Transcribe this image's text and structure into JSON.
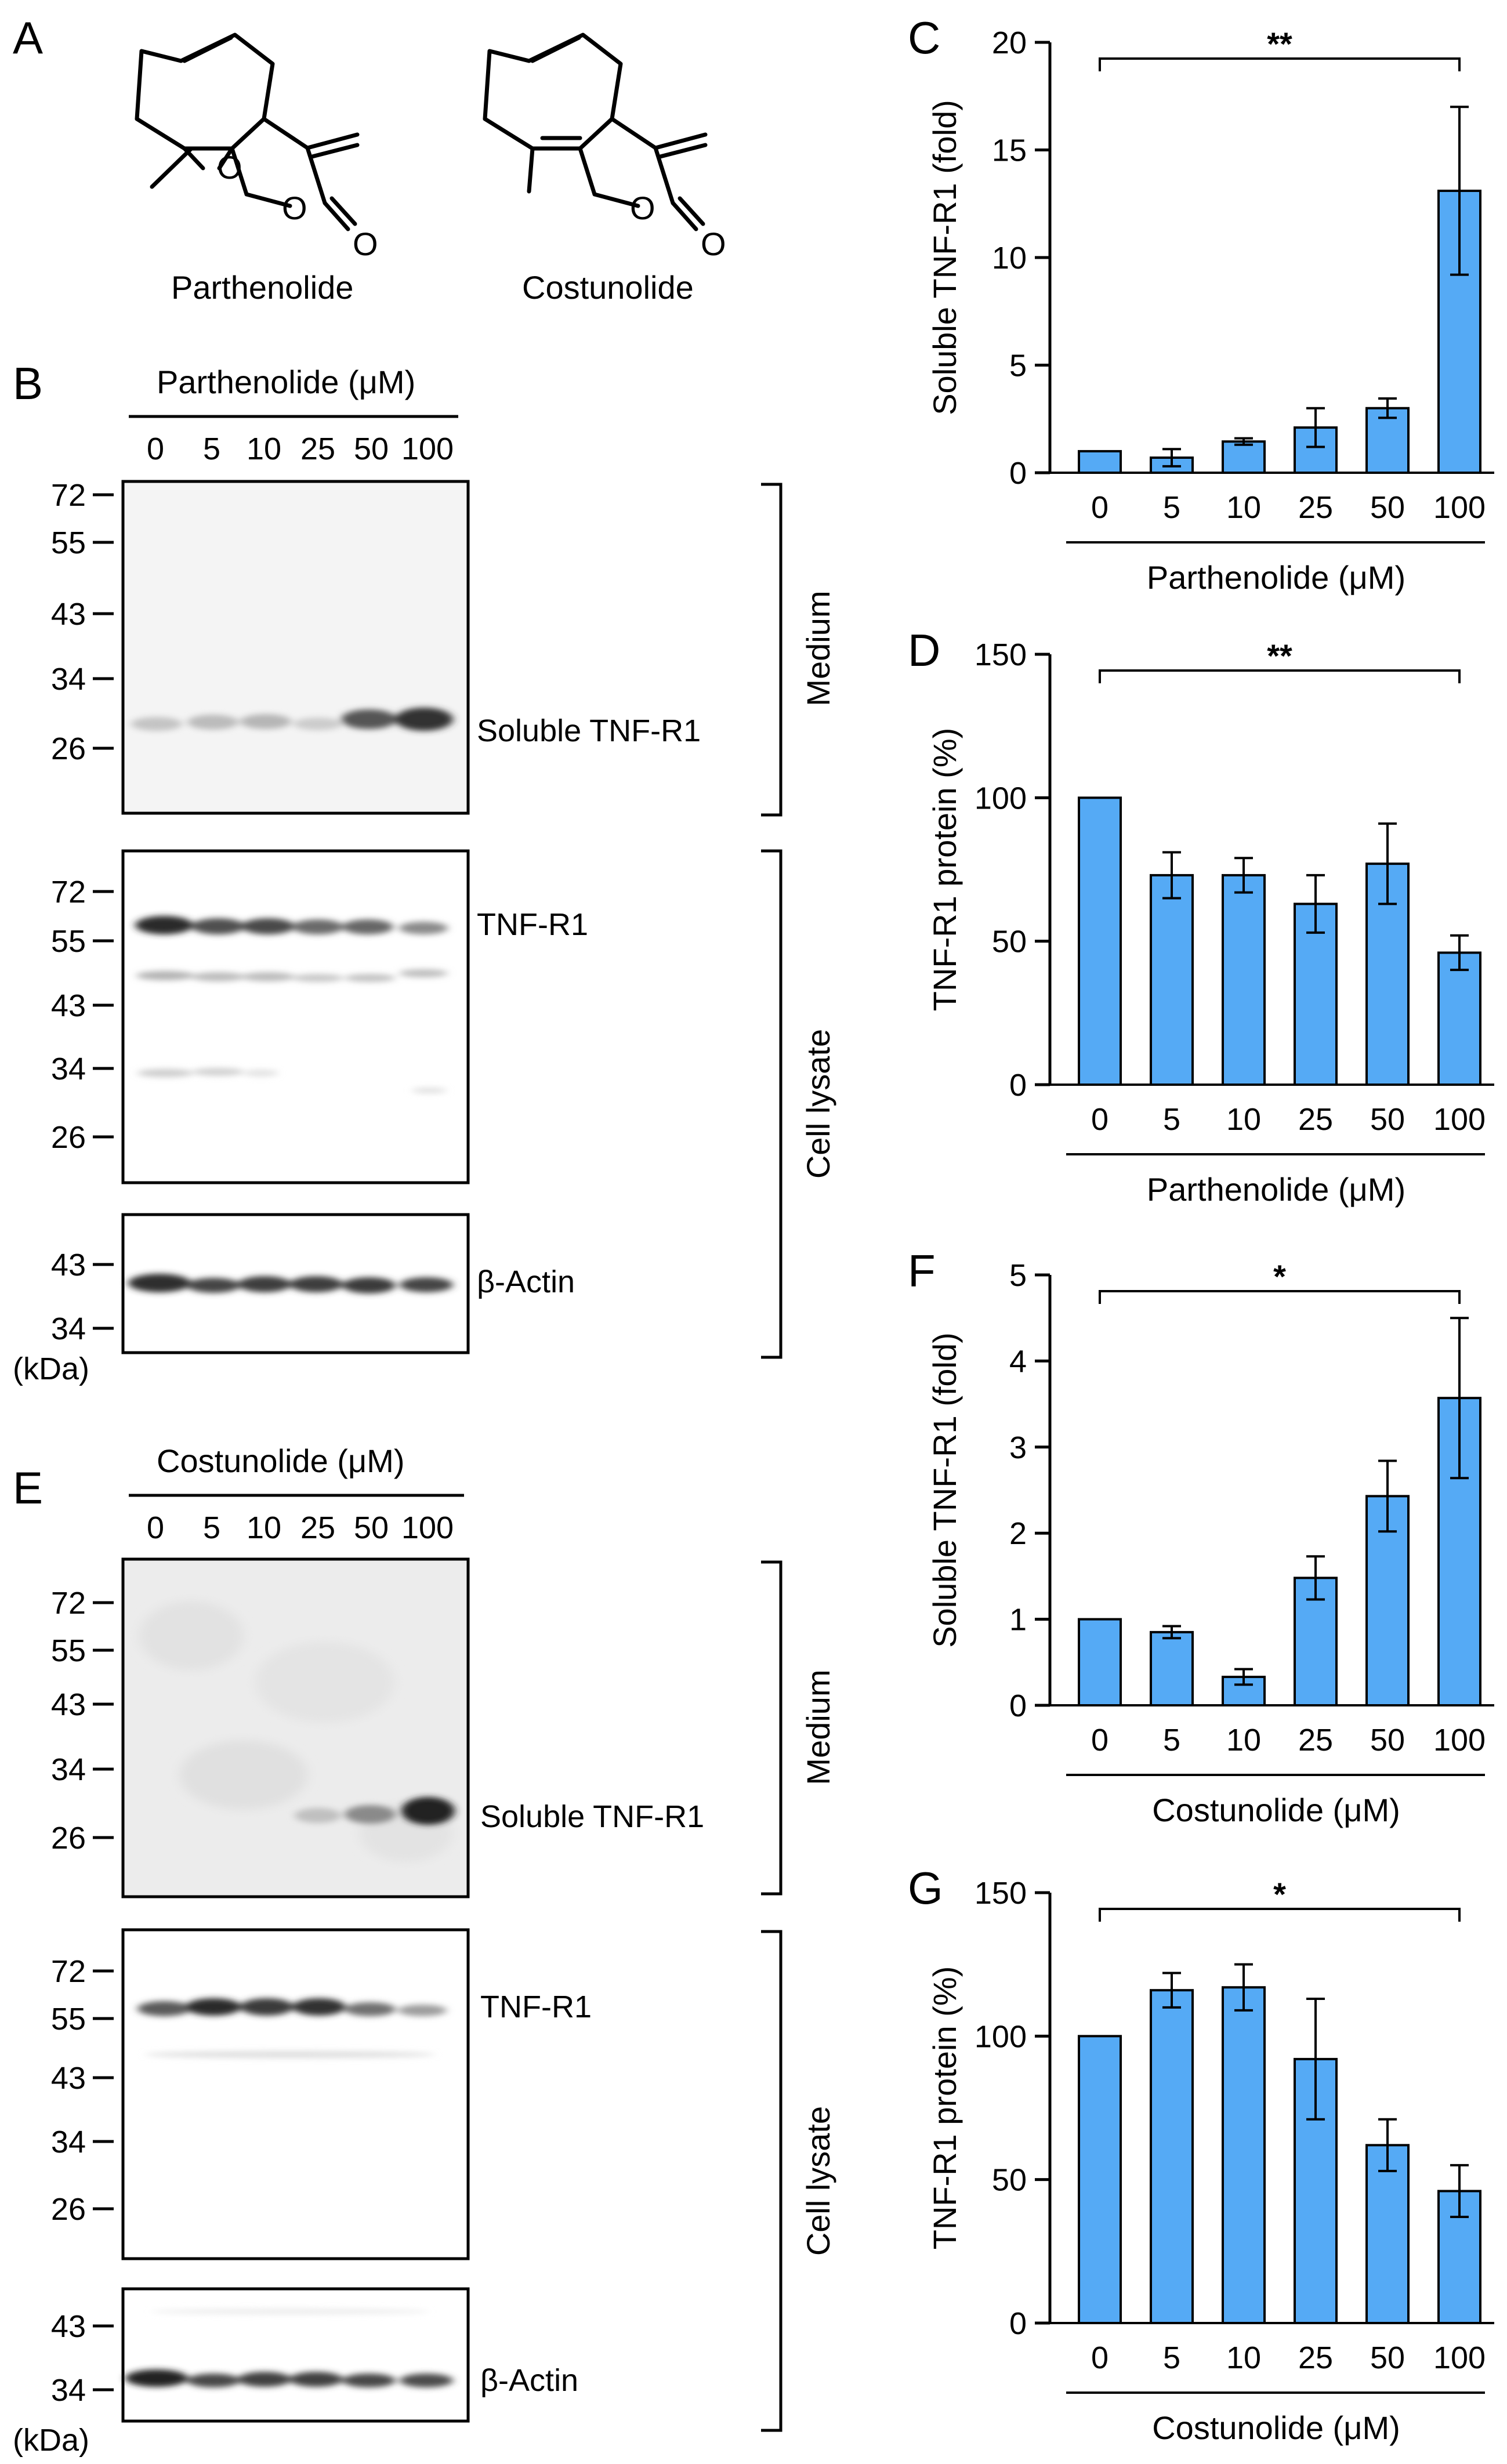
{
  "panels": {
    "A": {
      "letter": "A",
      "compounds": [
        {
          "name": "Parthenolide"
        },
        {
          "name": "Costunolide"
        }
      ],
      "atoms": {
        "epoxide_o": "O",
        "ring_o": "O",
        "carbonyl_o": "O"
      }
    },
    "B": {
      "letter": "B",
      "treatment": "Parthenolide (μM)",
      "lanes": [
        "0",
        "5",
        "10",
        "25",
        "50",
        "100"
      ],
      "blots": [
        {
          "band": "Soluble TNF-R1",
          "markers": [
            "72",
            "55",
            "43",
            "34",
            "26"
          ]
        },
        {
          "band": "TNF-R1",
          "markers": [
            "72",
            "55",
            "43",
            "34",
            "26"
          ]
        },
        {
          "band": "β-Actin",
          "markers": [
            "43",
            "34"
          ]
        }
      ],
      "brackets": [
        "Medium",
        "Cell lysate"
      ],
      "unit": "(kDa)"
    },
    "E": {
      "letter": "E",
      "treatment": "Costunolide (μM)",
      "lanes": [
        "0",
        "5",
        "10",
        "25",
        "50",
        "100"
      ],
      "blots": [
        {
          "band": "Soluble TNF-R1",
          "markers": [
            "72",
            "55",
            "43",
            "34",
            "26"
          ]
        },
        {
          "band": "TNF-R1",
          "markers": [
            "72",
            "55",
            "43",
            "34",
            "26"
          ]
        },
        {
          "band": "β-Actin",
          "markers": [
            "43",
            "34"
          ]
        }
      ],
      "brackets": [
        "Medium",
        "Cell lysate"
      ],
      "unit": "(kDa)"
    }
  },
  "chart_data": [
    {
      "letter": "C",
      "type": "bar",
      "categories": [
        "0",
        "5",
        "10",
        "25",
        "50",
        "100"
      ],
      "values": [
        1.0,
        0.7,
        1.45,
        2.1,
        3.0,
        13.1
      ],
      "errors": [
        0,
        0.4,
        0.15,
        0.9,
        0.45,
        3.9
      ],
      "ylabel": "Soluble TNF-R1 (fold)",
      "xlabel": "Parthenolide (μM)",
      "ylim": [
        0,
        20
      ],
      "yticks": [
        "0",
        "5",
        "10",
        "15",
        "20"
      ],
      "significance": "**",
      "bar_color": "#55aaf5"
    },
    {
      "letter": "D",
      "type": "bar",
      "categories": [
        "0",
        "5",
        "10",
        "25",
        "50",
        "100"
      ],
      "values": [
        100,
        73,
        73,
        63,
        77,
        46
      ],
      "errors": [
        0,
        8,
        6,
        10,
        14,
        6
      ],
      "ylabel": "TNF-R1 protein (%)",
      "xlabel": "Parthenolide (μM)",
      "ylim": [
        0,
        150
      ],
      "yticks": [
        "0",
        "50",
        "100",
        "150"
      ],
      "significance": "**",
      "bar_color": "#55aaf5"
    },
    {
      "letter": "F",
      "type": "bar",
      "categories": [
        "0",
        "5",
        "10",
        "25",
        "50",
        "100"
      ],
      "values": [
        1.0,
        0.85,
        0.33,
        1.48,
        2.43,
        3.57
      ],
      "errors": [
        0,
        0.07,
        0.09,
        0.25,
        0.41,
        0.93
      ],
      "ylabel": "Soluble TNF-R1 (fold)",
      "xlabel": "Costunolide (μM)",
      "ylim": [
        0,
        5
      ],
      "yticks": [
        "0",
        "1",
        "2",
        "3",
        "4",
        "5"
      ],
      "significance": "*",
      "bar_color": "#55aaf5"
    },
    {
      "letter": "G",
      "type": "bar",
      "categories": [
        "0",
        "5",
        "10",
        "25",
        "50",
        "100"
      ],
      "values": [
        100,
        116,
        117,
        92,
        62,
        46
      ],
      "errors": [
        0,
        6,
        8,
        21,
        9,
        9
      ],
      "ylabel": "TNF-R1 protein (%)",
      "xlabel": "Costunolide (μM)",
      "ylim": [
        0,
        150
      ],
      "yticks": [
        "0",
        "50",
        "100",
        "150"
      ],
      "significance": "*",
      "bar_color": "#55aaf5"
    }
  ]
}
